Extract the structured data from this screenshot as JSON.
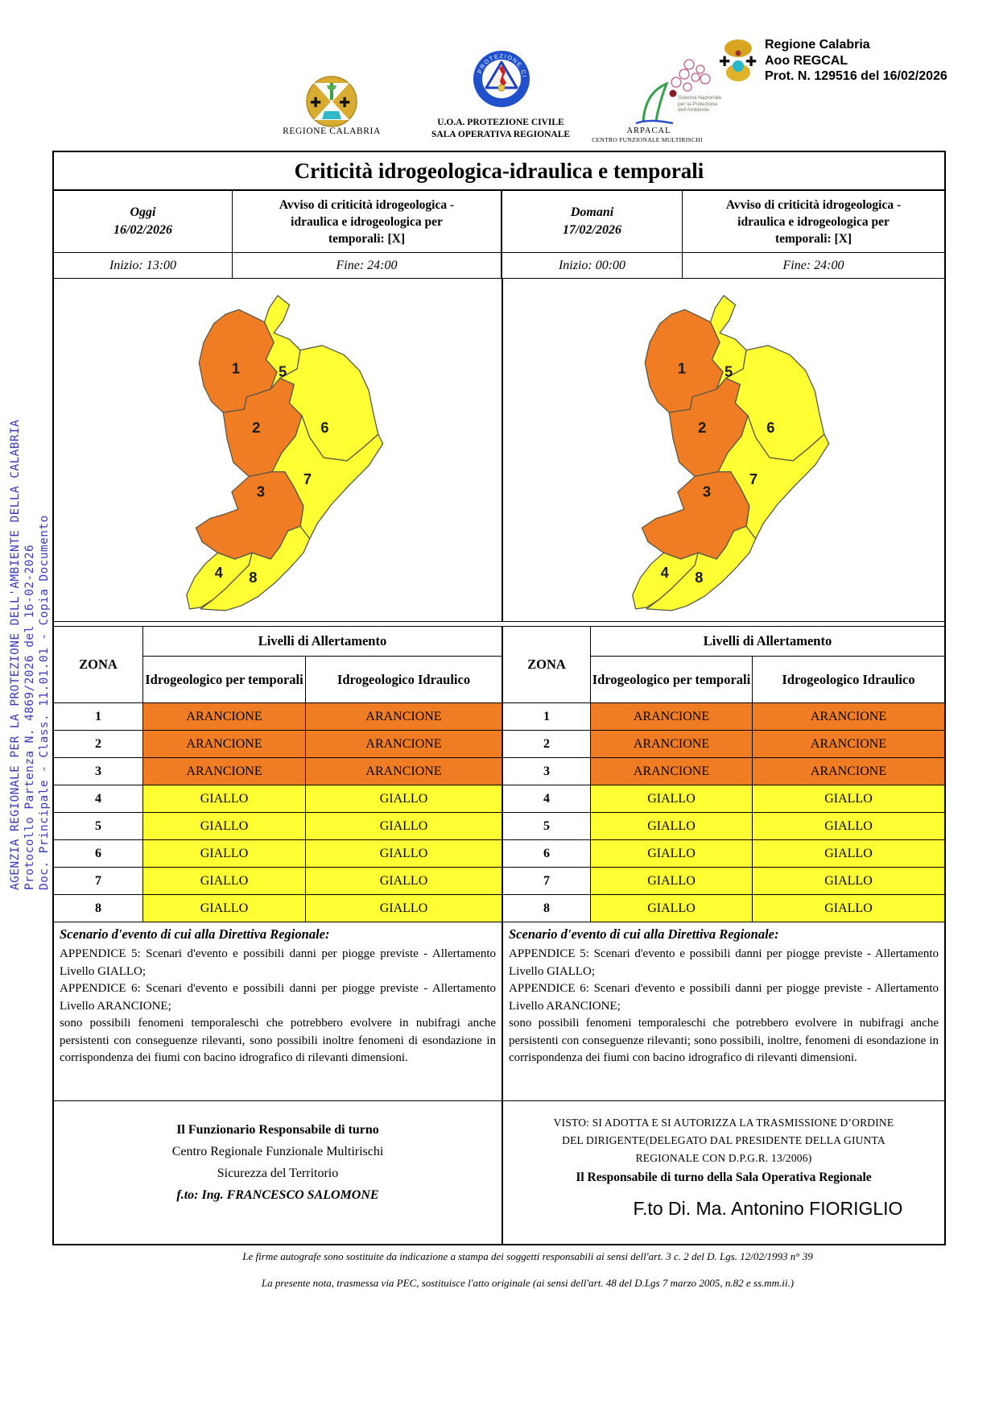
{
  "colors": {
    "arancione": "#F07D23",
    "giallo": "#FFFF33",
    "side_text": "#3B3BBD",
    "map_border": "#55554A"
  },
  "side_text": {
    "line1": "AGENZIA REGIONALE PER LA PROTEZIONE DELL'AMBIENTE DELLA CALABRIA",
    "line2": "Protocollo Partenza N. 4869/2026 del 16-02-2026",
    "line3": "Doc. Principale - Class. 11.01.01 - Copia Documento"
  },
  "header": {
    "regione_logo_caption": "REGIONE CALABRIA",
    "pc_caption_line1": "U.O.A. PROTEZIONE CIVILE",
    "pc_caption_line2": "SALA OPERATIVA REGIONALE",
    "pc_ring_top": "PROTEZIONE CIVILE",
    "pc_ring_bottom": "Regione Calabria",
    "arpacal_caption_line1": "ARPACAL",
    "arpacal_caption_line2": "CENTRO FUNZIONALE MULTIRISCHI",
    "snpa_line1": "Sistema Nazionale",
    "snpa_line2": "per la Protezione",
    "snpa_line3": "dell'Ambiente",
    "protocol_line1": "Regione Calabria",
    "protocol_line2": "Aoo REGCAL",
    "protocol_line3": "Prot. N. 129516 del 16/02/2026"
  },
  "title": "Criticità idrogeologica-idraulica e temporali",
  "days": [
    {
      "label": "Oggi",
      "date": "16/02/2026",
      "avviso_line1": "Avviso di criticità idrogeologica -",
      "avviso_line2": "idraulica e idrogeologica per",
      "avviso_line3": "temporali: [X]",
      "inizio": "Inizio: 13:00",
      "fine": "Fine: 24:00"
    },
    {
      "label": "Domani",
      "date": "17/02/2026",
      "avviso_line1": "Avviso di criticità idrogeologica -",
      "avviso_line2": "idraulica e idrogeologica per",
      "avviso_line3": "temporali: [X]",
      "inizio": "Inizio: 00:00",
      "fine": "Fine: 24:00"
    }
  ],
  "map": {
    "zone_levels": {
      "1": "arancione",
      "2": "arancione",
      "3": "arancione",
      "4": "giallo",
      "5": "giallo",
      "6": "giallo",
      "7": "giallo",
      "8": "giallo"
    },
    "zone_labels": {
      "1": "1",
      "2": "2",
      "3": "3",
      "4": "4",
      "5": "5",
      "6": "6",
      "7": "7",
      "8": "8"
    }
  },
  "alert_table": {
    "zona_header": "ZONA",
    "livelli_header": "Livelli di Allertamento",
    "col_temporali": "Idrogeologico per temporali",
    "col_idraulico": "Idrogeologico Idraulico",
    "rows": [
      {
        "zona": "1",
        "temporali": "ARANCIONE",
        "idraulico": "ARANCIONE",
        "level": "arancione"
      },
      {
        "zona": "2",
        "temporali": "ARANCIONE",
        "idraulico": "ARANCIONE",
        "level": "arancione"
      },
      {
        "zona": "3",
        "temporali": "ARANCIONE",
        "idraulico": "ARANCIONE",
        "level": "arancione"
      },
      {
        "zona": "4",
        "temporali": "GIALLO",
        "idraulico": "GIALLO",
        "level": "giallo"
      },
      {
        "zona": "5",
        "temporali": "GIALLO",
        "idraulico": "GIALLO",
        "level": "giallo"
      },
      {
        "zona": "6",
        "temporali": "GIALLO",
        "idraulico": "GIALLO",
        "level": "giallo"
      },
      {
        "zona": "7",
        "temporali": "GIALLO",
        "idraulico": "GIALLO",
        "level": "giallo"
      },
      {
        "zona": "8",
        "temporali": "GIALLO",
        "idraulico": "GIALLO",
        "level": "giallo"
      }
    ]
  },
  "scenario": {
    "heading": "Scenario d'evento di cui alla Direttiva Regionale:",
    "left_p1": "APPENDICE 5: Scenari d'evento e possibili danni per piogge previste - Allertamento Livello GIALLO;",
    "left_p2": "APPENDICE 6: Scenari d'evento e possibili danni per piogge previste - Allertamento Livello ARANCIONE;",
    "left_p3": "sono possibili fenomeni temporaleschi che potrebbero evolvere in nubifragi anche persistenti con conseguenze rilevanti, sono possibili inoltre fenomeni di esondazione in corrispondenza dei fiumi con bacino idrografico di rilevanti dimensioni.",
    "right_p1": "APPENDICE 5: Scenari d'evento e possibili danni per piogge previste - Allertamento Livello GIALLO;",
    "right_p2": "APPENDICE 6: Scenari d'evento e possibili danni per piogge previste - Allertamento Livello ARANCIONE;",
    "right_p3": "sono possibili fenomeni temporaleschi che potrebbero evolvere in nubifragi anche persistenti con conseguenze rilevanti; sono possibili, inoltre, fenomeni di esondazione in corrispondenza dei fiumi con bacino idrografico di rilevanti dimensioni."
  },
  "signature": {
    "left_line1": "Il Funzionario Responsabile di turno",
    "left_line2": "Centro Regionale Funzionale Multirischi",
    "left_line3": "Sicurezza del Territorio",
    "left_line4": "f.to: Ing. FRANCESCO SALOMONE",
    "visto_line1": "VISTO: SI ADOTTA E SI AUTORIZZA LA TRASMISSIONE D’ORDINE",
    "visto_line2": "DEL DIRIGENTE(DELEGATO DAL PRESIDENTE DELLA GIUNTA",
    "visto_line3": "REGIONALE CON D.P.G.R. 13/2006)",
    "right_role": "Il Responsabile di turno della Sala Operativa Regionale",
    "right_name": "F.to Di. Ma. Antonino FIORIGLIO"
  },
  "footer": {
    "note1": "Le firme autografe sono sostituite da indicazione a stampa dei soggetti responsabili ai sensi dell'art. 3 c. 2 del D. Lgs. 12/02/1993 n° 39",
    "note2": "La presente nota, trasmessa via PEC, sostituisce l'atto originale (ai sensi dell'art. 48 del D.Lgs 7 marzo 2005, n.82 e ss.mm.ii.)"
  }
}
